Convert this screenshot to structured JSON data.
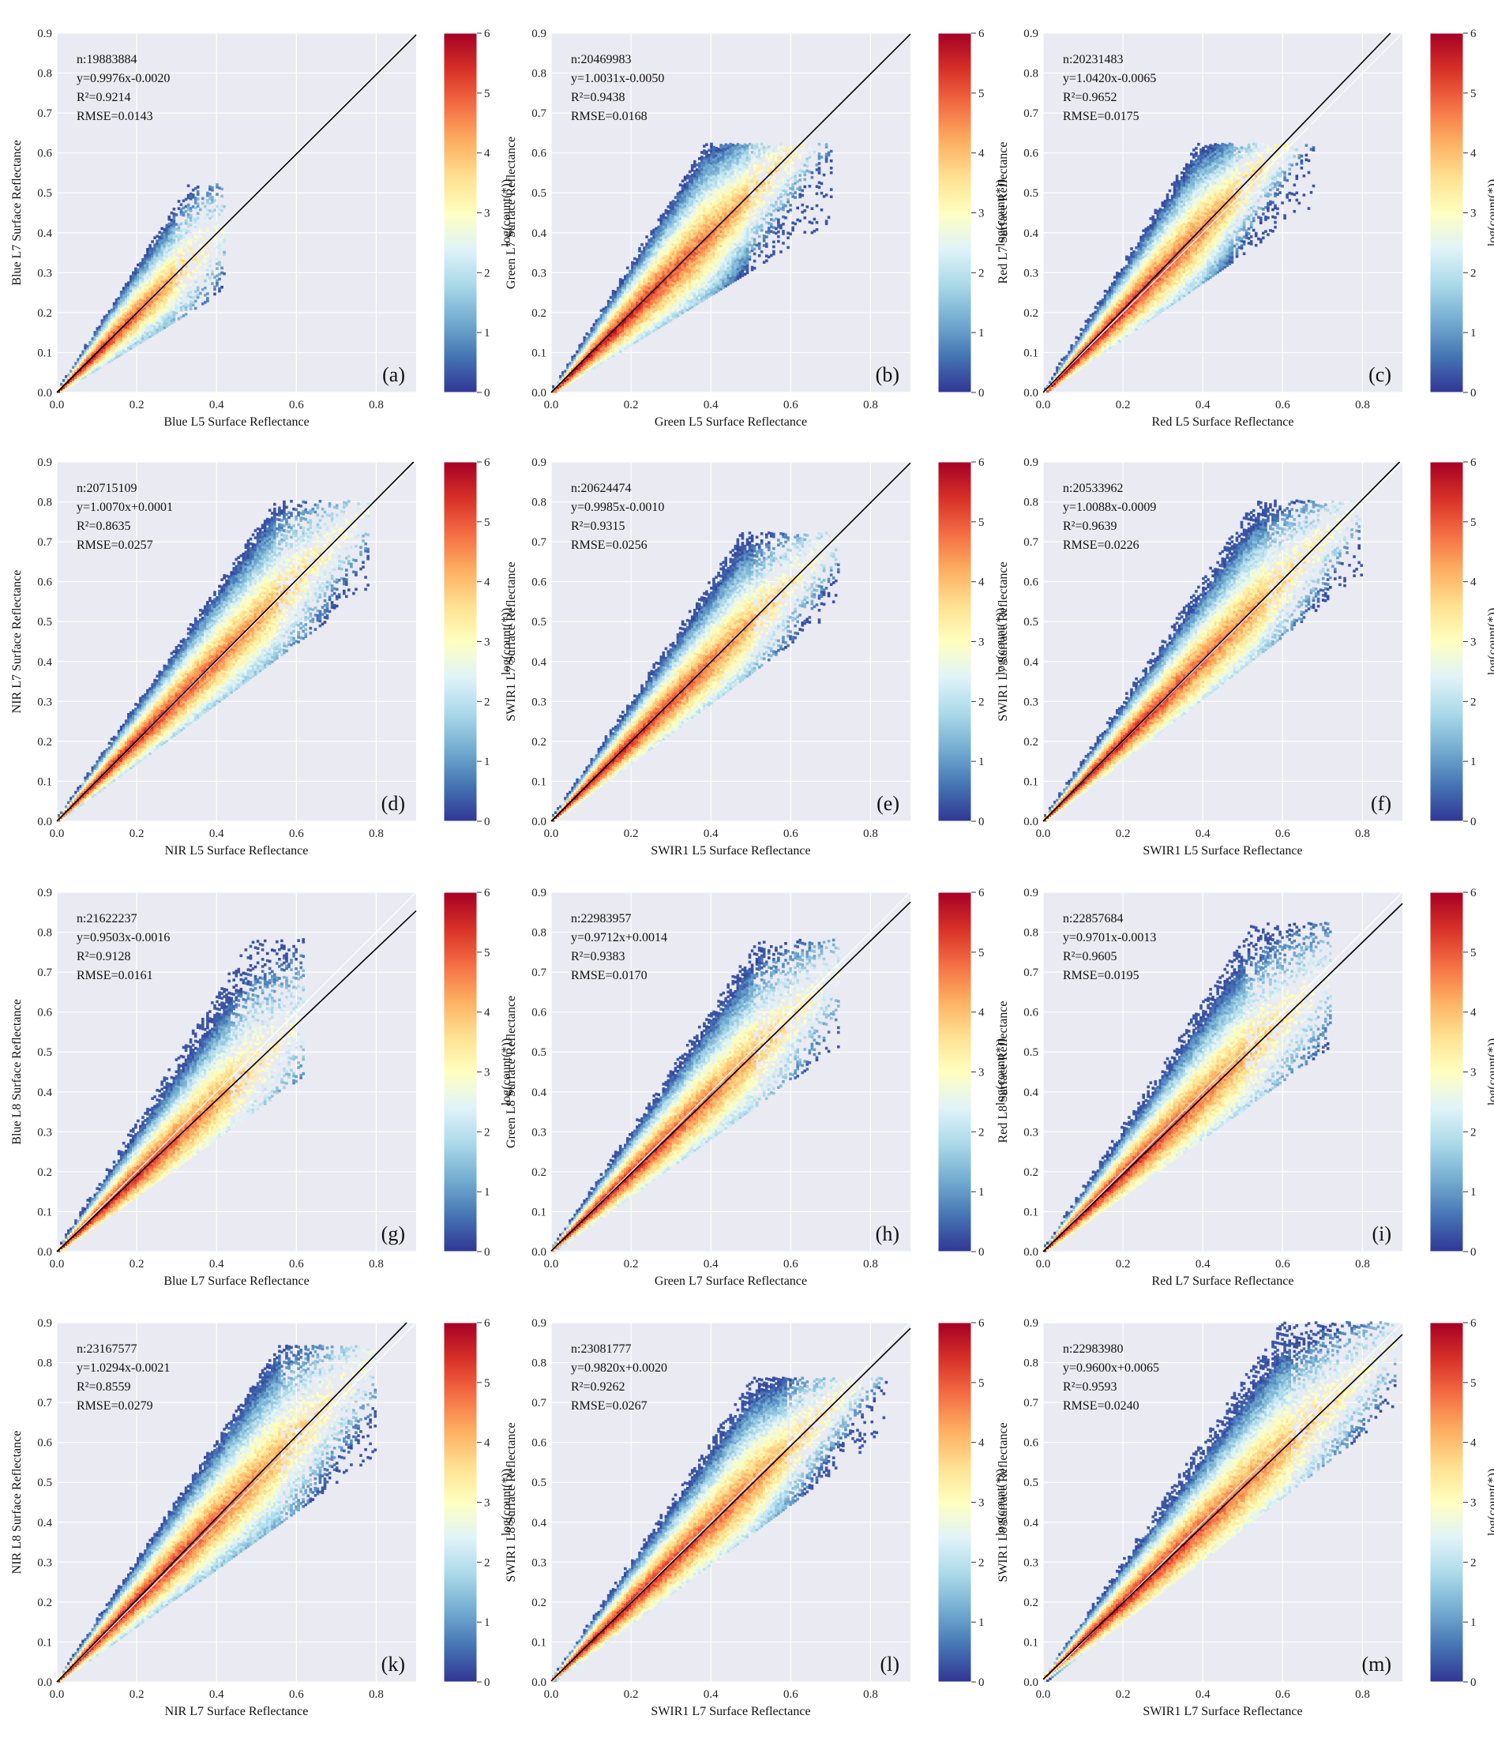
{
  "colorbar": {
    "label": "log(count(*))",
    "ticks": [
      0,
      1,
      2,
      3,
      4,
      5,
      6
    ],
    "stops": [
      "#313695",
      "#4575b4",
      "#74add1",
      "#abd9e9",
      "#e0f3f8",
      "#ffffbf",
      "#fee090",
      "#fdae61",
      "#f46d43",
      "#d73027",
      "#a50026"
    ]
  },
  "chart_data": [
    {
      "type": "heatmap",
      "panel_label": "(a)",
      "xlabel": "Blue L5 Surface Reflectance",
      "ylabel": "Blue L7 Surface Reflectance",
      "xlim": [
        0,
        0.9
      ],
      "ylim": [
        0,
        0.9
      ],
      "xticks": [
        0.0,
        0.2,
        0.4,
        0.6,
        0.8
      ],
      "yticks": [
        0.0,
        0.1,
        0.2,
        0.3,
        0.4,
        0.5,
        0.6,
        0.7,
        0.8,
        0.9
      ],
      "n_text": "n:19883884",
      "eq_text": "y=0.9976x-0.0020",
      "r2_text": "R²=0.9214",
      "rmse_text": "RMSE=0.0143",
      "fit": {
        "slope": 0.9976,
        "intercept": -0.002
      },
      "extent": {
        "xmax": 0.42,
        "ymax": 0.52,
        "lower_slope": 0.62,
        "upper_slope": 1.55
      },
      "grid": true
    },
    {
      "type": "heatmap",
      "panel_label": "(b)",
      "xlabel": "Green L5 Surface Reflectance",
      "ylabel": "Green L7 Surface Reflectance",
      "xlim": [
        0,
        0.9
      ],
      "ylim": [
        0,
        0.9
      ],
      "xticks": [
        0.0,
        0.2,
        0.4,
        0.6,
        0.8
      ],
      "yticks": [
        0.0,
        0.1,
        0.2,
        0.3,
        0.4,
        0.5,
        0.6,
        0.7,
        0.8,
        0.9
      ],
      "n_text": "n:20469983",
      "eq_text": "y=1.0031x-0.0050",
      "r2_text": "R²=0.9438",
      "rmse_text": "RMSE=0.0168",
      "fit": {
        "slope": 1.0031,
        "intercept": -0.005
      },
      "extent": {
        "xmax": 0.7,
        "ymax": 0.62,
        "lower_slope": 0.62,
        "upper_slope": 1.6
      },
      "grid": true
    },
    {
      "type": "heatmap",
      "panel_label": "(c)",
      "xlabel": "Red L5 Surface Reflectance",
      "ylabel": "Red L7 Surface Reflectance",
      "xlim": [
        0,
        0.9
      ],
      "ylim": [
        0,
        0.9
      ],
      "xticks": [
        0.0,
        0.2,
        0.4,
        0.6,
        0.8
      ],
      "yticks": [
        0.0,
        0.1,
        0.2,
        0.3,
        0.4,
        0.5,
        0.6,
        0.7,
        0.8,
        0.9
      ],
      "n_text": "n:20231483",
      "eq_text": "y=1.0420x-0.0065",
      "r2_text": "R²=0.9652",
      "rmse_text": "RMSE=0.0175",
      "fit": {
        "slope": 1.042,
        "intercept": -0.0065
      },
      "extent": {
        "xmax": 0.68,
        "ymax": 0.62,
        "lower_slope": 0.7,
        "upper_slope": 1.6
      },
      "grid": true
    },
    {
      "type": "heatmap",
      "panel_label": "(d)",
      "xlabel": "NIR L5 Surface Reflectance",
      "ylabel": "NIR L7 Surface Reflectance",
      "xlim": [
        0,
        0.9
      ],
      "ylim": [
        0,
        0.9
      ],
      "xticks": [
        0.0,
        0.2,
        0.4,
        0.6,
        0.8
      ],
      "yticks": [
        0.0,
        0.1,
        0.2,
        0.3,
        0.4,
        0.5,
        0.6,
        0.7,
        0.8,
        0.9
      ],
      "n_text": "n:20715109",
      "eq_text": "y=1.0070x+0.0001",
      "r2_text": "R²=0.8635",
      "rmse_text": "RMSE=0.0257",
      "fit": {
        "slope": 1.007,
        "intercept": 0.0001
      },
      "extent": {
        "xmax": 0.78,
        "ymax": 0.8,
        "lower_slope": 0.75,
        "upper_slope": 1.45
      },
      "grid": true
    },
    {
      "type": "heatmap",
      "panel_label": "(e)",
      "xlabel": "SWIR1 L5 Surface Reflectance",
      "ylabel": "SWIR1 L7 Surface Reflectance",
      "xlim": [
        0,
        0.9
      ],
      "ylim": [
        0,
        0.9
      ],
      "xticks": [
        0.0,
        0.2,
        0.4,
        0.6,
        0.8
      ],
      "yticks": [
        0.0,
        0.1,
        0.2,
        0.3,
        0.4,
        0.5,
        0.6,
        0.7,
        0.8,
        0.9
      ],
      "n_text": "n:20624474",
      "eq_text": "y=0.9985x-0.0010",
      "r2_text": "R²=0.9315",
      "rmse_text": "RMSE=0.0256",
      "fit": {
        "slope": 0.9985,
        "intercept": -0.001
      },
      "extent": {
        "xmax": 0.72,
        "ymax": 0.72,
        "lower_slope": 0.75,
        "upper_slope": 1.5
      },
      "grid": true
    },
    {
      "type": "heatmap",
      "panel_label": "(f)",
      "xlabel": "SWIR1 L5 Surface Reflectance",
      "ylabel": "SWIR1 L7 Surface Reflectance",
      "xlim": [
        0,
        0.9
      ],
      "ylim": [
        0,
        0.9
      ],
      "xticks": [
        0.0,
        0.2,
        0.4,
        0.6,
        0.8
      ],
      "yticks": [
        0.0,
        0.1,
        0.2,
        0.3,
        0.4,
        0.5,
        0.6,
        0.7,
        0.8,
        0.9
      ],
      "n_text": "n:20533962",
      "eq_text": "y=1.0088x-0.0009",
      "r2_text": "R²=0.9639",
      "rmse_text": "RMSE=0.0226",
      "fit": {
        "slope": 1.0088,
        "intercept": -0.0009
      },
      "extent": {
        "xmax": 0.8,
        "ymax": 0.8,
        "lower_slope": 0.78,
        "upper_slope": 1.5
      },
      "grid": true
    },
    {
      "type": "heatmap",
      "panel_label": "(g)",
      "xlabel": "Blue L7 Surface Reflectance",
      "ylabel": "Blue L8 Surface Reflectance",
      "xlim": [
        0,
        0.9
      ],
      "ylim": [
        0,
        0.9
      ],
      "xticks": [
        0.0,
        0.2,
        0.4,
        0.6,
        0.8
      ],
      "yticks": [
        0.0,
        0.1,
        0.2,
        0.3,
        0.4,
        0.5,
        0.6,
        0.7,
        0.8,
        0.9
      ],
      "n_text": "n:21622237",
      "eq_text": "y=0.9503x-0.0016",
      "r2_text": "R²=0.9128",
      "rmse_text": "RMSE=0.0161",
      "fit": {
        "slope": 0.9503,
        "intercept": -0.0016
      },
      "extent": {
        "xmax": 0.62,
        "ymax": 0.78,
        "lower_slope": 0.72,
        "upper_slope": 1.6
      },
      "grid": true
    },
    {
      "type": "heatmap",
      "panel_label": "(h)",
      "xlabel": "Green L7 Surface Reflectance",
      "ylabel": "Green L8 Surface Reflectance",
      "xlim": [
        0,
        0.9
      ],
      "ylim": [
        0,
        0.9
      ],
      "xticks": [
        0.0,
        0.2,
        0.4,
        0.6,
        0.8
      ],
      "yticks": [
        0.0,
        0.1,
        0.2,
        0.3,
        0.4,
        0.5,
        0.6,
        0.7,
        0.8,
        0.9
      ],
      "n_text": "n:22983957",
      "eq_text": "y=0.9712x+0.0014",
      "r2_text": "R²=0.9383",
      "rmse_text": "RMSE=0.0170",
      "fit": {
        "slope": 0.9712,
        "intercept": 0.0014
      },
      "extent": {
        "xmax": 0.72,
        "ymax": 0.78,
        "lower_slope": 0.72,
        "upper_slope": 1.5
      },
      "grid": true
    },
    {
      "type": "heatmap",
      "panel_label": "(i)",
      "xlabel": "Red L7 Surface Reflectance",
      "ylabel": "Red L8 Surface Reflectance",
      "xlim": [
        0,
        0.9
      ],
      "ylim": [
        0,
        0.9
      ],
      "xticks": [
        0.0,
        0.2,
        0.4,
        0.6,
        0.8
      ],
      "yticks": [
        0.0,
        0.1,
        0.2,
        0.3,
        0.4,
        0.5,
        0.6,
        0.7,
        0.8,
        0.9
      ],
      "n_text": "n:22857684",
      "eq_text": "y=0.9701x-0.0013",
      "r2_text": "R²=0.9605",
      "rmse_text": "RMSE=0.0195",
      "fit": {
        "slope": 0.9701,
        "intercept": -0.0013
      },
      "extent": {
        "xmax": 0.72,
        "ymax": 0.82,
        "lower_slope": 0.72,
        "upper_slope": 1.55
      },
      "grid": true
    },
    {
      "type": "heatmap",
      "panel_label": "(k)",
      "xlabel": "NIR L7 Surface Reflectance",
      "ylabel": "NIR L8 Surface Reflectance",
      "xlim": [
        0,
        0.9
      ],
      "ylim": [
        0,
        0.9
      ],
      "xticks": [
        0.0,
        0.2,
        0.4,
        0.6,
        0.8
      ],
      "yticks": [
        0.0,
        0.1,
        0.2,
        0.3,
        0.4,
        0.5,
        0.6,
        0.7,
        0.8,
        0.9
      ],
      "n_text": "n:23167577",
      "eq_text": "y=1.0294x-0.0021",
      "r2_text": "R²=0.8559",
      "rmse_text": "RMSE=0.0279",
      "fit": {
        "slope": 1.0294,
        "intercept": -0.0021
      },
      "extent": {
        "xmax": 0.8,
        "ymax": 0.84,
        "lower_slope": 0.72,
        "upper_slope": 1.5
      },
      "grid": true
    },
    {
      "type": "heatmap",
      "panel_label": "(l)",
      "xlabel": "SWIR1 L7 Surface Reflectance",
      "ylabel": "SWIR1 L8 Surface Reflectance",
      "xlim": [
        0,
        0.9
      ],
      "ylim": [
        0,
        0.9
      ],
      "xticks": [
        0.0,
        0.2,
        0.4,
        0.6,
        0.8
      ],
      "yticks": [
        0.0,
        0.1,
        0.2,
        0.3,
        0.4,
        0.5,
        0.6,
        0.7,
        0.8,
        0.9
      ],
      "n_text": "n:23081777",
      "eq_text": "y=0.9820x+0.0020",
      "r2_text": "R²=0.9262",
      "rmse_text": "RMSE=0.0267",
      "fit": {
        "slope": 0.982,
        "intercept": 0.002
      },
      "extent": {
        "xmax": 0.84,
        "ymax": 0.76,
        "lower_slope": 0.75,
        "upper_slope": 1.5
      },
      "grid": true
    },
    {
      "type": "heatmap",
      "panel_label": "(m)",
      "xlabel": "SWIR1 L7 Surface Reflectance",
      "ylabel": "SWIR1 L8 Surface Reflectance",
      "xlim": [
        0,
        0.9
      ],
      "ylim": [
        0,
        0.9
      ],
      "xticks": [
        0.0,
        0.2,
        0.4,
        0.6,
        0.8
      ],
      "yticks": [
        0.0,
        0.1,
        0.2,
        0.3,
        0.4,
        0.5,
        0.6,
        0.7,
        0.8,
        0.9
      ],
      "n_text": "n:22983980",
      "eq_text": "y=0.9600x+0.0065",
      "r2_text": "R²=0.9593",
      "rmse_text": "RMSE=0.0240",
      "fit": {
        "slope": 0.96,
        "intercept": 0.0065
      },
      "extent": {
        "xmax": 0.88,
        "ymax": 0.9,
        "lower_slope": 0.78,
        "upper_slope": 1.5
      },
      "grid": true
    }
  ]
}
